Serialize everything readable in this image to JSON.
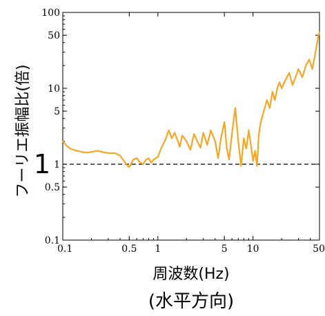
{
  "chart_data": {
    "type": "line",
    "title": "",
    "xlabel": "周波数(Hz)",
    "ylabel": "フーリエ振幅比(倍)",
    "caption": "(水平方向)",
    "xscale": "log",
    "yscale": "log",
    "xlim": [
      0.1,
      50
    ],
    "ylim": [
      0.1,
      100
    ],
    "x_ticks": [
      {
        "value": 0.1,
        "label": "0.1"
      },
      {
        "value": 0.5,
        "label": "0.5"
      },
      {
        "value": 1,
        "label": "1"
      },
      {
        "value": 5,
        "label": "5"
      },
      {
        "value": 10,
        "label": "10"
      },
      {
        "value": 50,
        "label": "50"
      }
    ],
    "y_ticks": [
      {
        "value": 0.1,
        "label": "0.1"
      },
      {
        "value": 0.5,
        "label": "0.5"
      },
      {
        "value": 1,
        "label": "1"
      },
      {
        "value": 5,
        "label": "5"
      },
      {
        "value": 10,
        "label": "10"
      },
      {
        "value": 50,
        "label": "50"
      },
      {
        "value": 100,
        "label": "100"
      }
    ],
    "reference_line": {
      "y": 1,
      "style": "dashed",
      "label": "1"
    },
    "grid": false,
    "series": [
      {
        "color": "#F5A623",
        "x": [
          0.1,
          0.11,
          0.12,
          0.14,
          0.16,
          0.18,
          0.2,
          0.23,
          0.26,
          0.3,
          0.35,
          0.4,
          0.44,
          0.48,
          0.5,
          0.52,
          0.55,
          0.6,
          0.65,
          0.7,
          0.75,
          0.8,
          0.85,
          0.9,
          1.0,
          1.1,
          1.2,
          1.3,
          1.4,
          1.5,
          1.6,
          1.7,
          1.8,
          2.0,
          2.2,
          2.4,
          2.6,
          2.8,
          3.0,
          3.3,
          3.6,
          4.0,
          4.3,
          4.6,
          5.0,
          5.3,
          5.6,
          6.0,
          6.5,
          7.0,
          7.5,
          8.0,
          8.5,
          9.0,
          9.5,
          10.0,
          10.5,
          11.0,
          11.5,
          12.0,
          13.0,
          14.0,
          15.0,
          16.0,
          17.0,
          18.0,
          19.0,
          20.0,
          22.0,
          24.0,
          26.0,
          28.0,
          30.0,
          33.0,
          36.0,
          39.0,
          42.0,
          45.0,
          48.0,
          50.0
        ],
        "y": [
          2.0,
          1.75,
          1.6,
          1.5,
          1.45,
          1.42,
          1.45,
          1.5,
          1.45,
          1.4,
          1.4,
          1.3,
          1.1,
          0.95,
          0.92,
          1.0,
          1.15,
          1.2,
          1.05,
          1.0,
          1.15,
          1.2,
          1.05,
          1.15,
          1.25,
          1.7,
          2.1,
          2.8,
          2.2,
          2.6,
          2.1,
          1.7,
          2.4,
          2.0,
          1.55,
          2.5,
          2.0,
          1.65,
          2.6,
          1.8,
          2.8,
          2.0,
          1.2,
          2.2,
          3.6,
          1.6,
          1.15,
          2.5,
          5.5,
          2.0,
          0.95,
          2.2,
          1.6,
          2.8,
          1.8,
          1.1,
          1.5,
          0.95,
          2.4,
          3.5,
          5.0,
          7.0,
          5.5,
          9.0,
          7.0,
          10.0,
          12.0,
          10.0,
          13.0,
          16.0,
          11.0,
          14.0,
          18.0,
          14.0,
          20.0,
          24.0,
          18.0,
          28.0,
          45.0,
          55.0
        ]
      }
    ]
  }
}
